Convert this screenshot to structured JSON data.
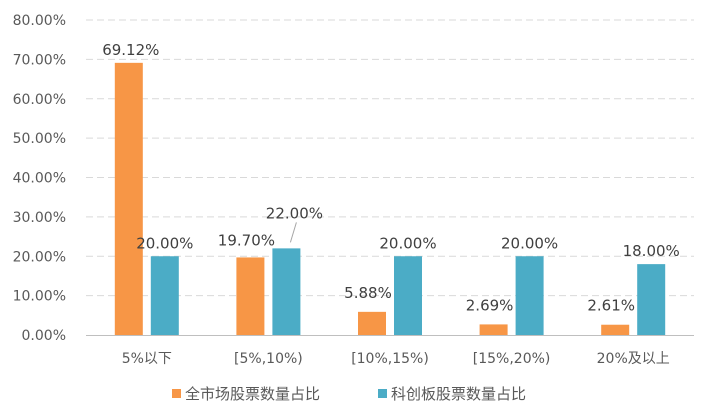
{
  "chart_data": {
    "type": "bar",
    "categories": [
      "5%以下",
      "[5%,10%)",
      "[10%,15%)",
      "[15%,20%)",
      "20%及以上"
    ],
    "series": [
      {
        "name": "全市场股票数量占比",
        "values": [
          69.12,
          19.7,
          5.88,
          2.69,
          2.61
        ],
        "labels": [
          "69.12%",
          "19.70%",
          "5.88%",
          "2.69%",
          "2.61%"
        ],
        "color": "#F79646"
      },
      {
        "name": "科创板股票数量占比",
        "values": [
          20.0,
          22.0,
          20.0,
          20.0,
          18.0
        ],
        "labels": [
          "20.00%",
          "22.00%",
          "20.00%",
          "20.00%",
          "18.00%"
        ],
        "color": "#4BACC6"
      }
    ],
    "ylim": [
      0,
      80
    ],
    "yticks": [
      "0.00%",
      "10.00%",
      "20.00%",
      "30.00%",
      "40.00%",
      "50.00%",
      "60.00%",
      "70.00%",
      "80.00%"
    ],
    "grid": true,
    "grid_color": "#D9D9D9",
    "legend_position": "bottom"
  }
}
